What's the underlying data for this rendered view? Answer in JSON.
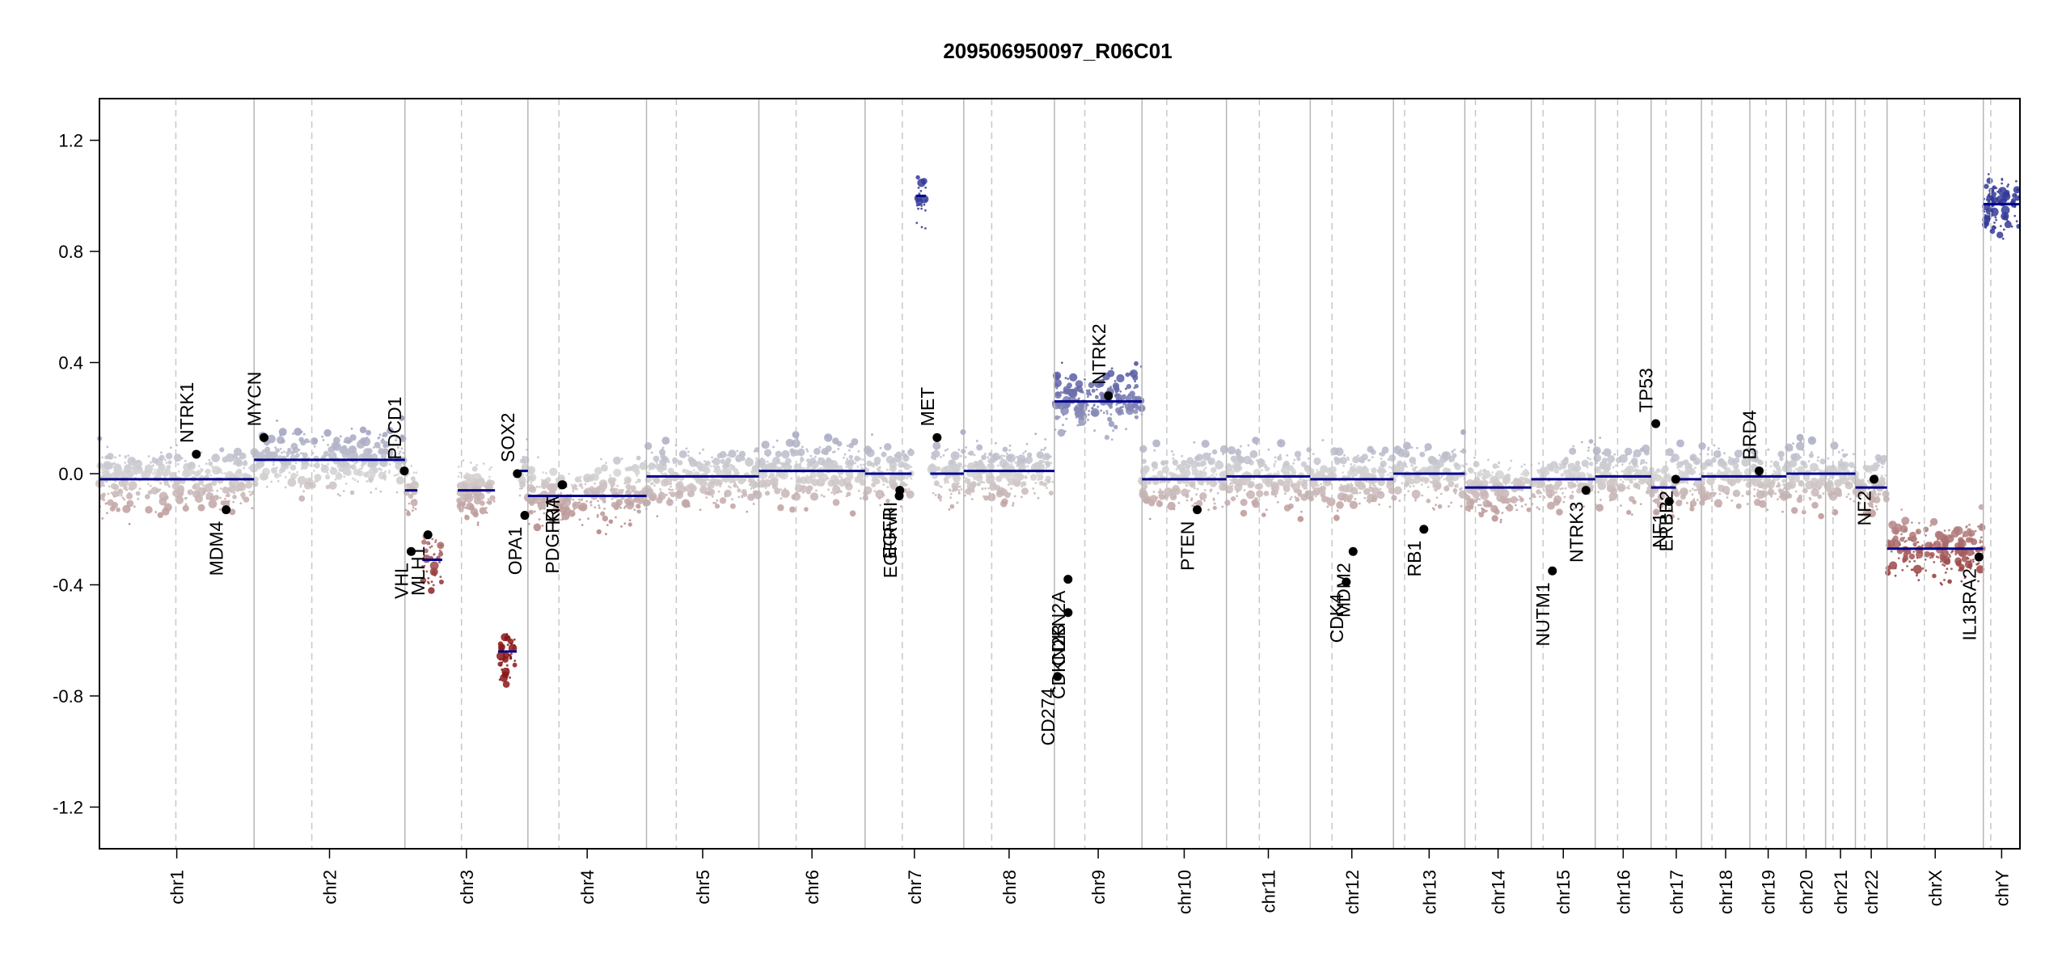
{
  "chart_data": {
    "type": "scatter",
    "title": "209506950097_R06C01",
    "xlabel": "",
    "ylabel": "",
    "ylim": [
      -1.35,
      1.35
    ],
    "y_ticks": [
      -1.2,
      -0.8,
      -0.4,
      0.0,
      0.4,
      0.8,
      1.2
    ],
    "y_tick_labels": [
      "-1.2",
      "-0.8",
      "-0.4",
      "0.0",
      "0.4",
      "0.8",
      "1.2"
    ],
    "grid": false,
    "colors": {
      "gain": "#3b3f9e",
      "loss": "#8b1a1a",
      "neutral": "#d0d0d0",
      "segment": "#00008b",
      "border": "#000000"
    },
    "chromosomes": [
      {
        "name": "chr1",
        "length": 249,
        "centromere": 123
      },
      {
        "name": "chr2",
        "length": 243,
        "centromere": 93
      },
      {
        "name": "chr3",
        "length": 198,
        "centromere": 91
      },
      {
        "name": "chr4",
        "length": 191,
        "centromere": 50
      },
      {
        "name": "chr5",
        "length": 181,
        "centromere": 48
      },
      {
        "name": "chr6",
        "length": 171,
        "centromere": 60
      },
      {
        "name": "chr7",
        "length": 159,
        "centromere": 60
      },
      {
        "name": "chr8",
        "length": 146,
        "centromere": 45
      },
      {
        "name": "chr9",
        "length": 141,
        "centromere": 49
      },
      {
        "name": "chr10",
        "length": 136,
        "centromere": 40
      },
      {
        "name": "chr11",
        "length": 135,
        "centromere": 53
      },
      {
        "name": "chr12",
        "length": 134,
        "centromere": 35
      },
      {
        "name": "chr13",
        "length": 115,
        "centromere": 18
      },
      {
        "name": "chr14",
        "length": 107,
        "centromere": 17
      },
      {
        "name": "chr15",
        "length": 103,
        "centromere": 19
      },
      {
        "name": "chr16",
        "length": 90,
        "centromere": 36
      },
      {
        "name": "chr17",
        "length": 81,
        "centromere": 24
      },
      {
        "name": "chr18",
        "length": 78,
        "centromere": 17
      },
      {
        "name": "chr19",
        "length": 59,
        "centromere": 26
      },
      {
        "name": "chr20",
        "length": 63,
        "centromere": 28
      },
      {
        "name": "chr21",
        "length": 48,
        "centromere": 12
      },
      {
        "name": "chr22",
        "length": 51,
        "centromere": 15
      },
      {
        "name": "chrX",
        "length": 155,
        "centromere": 60
      },
      {
        "name": "chrY",
        "length": 59,
        "centromere": 12
      }
    ],
    "segments": [
      {
        "chr": "chr1",
        "start": 0,
        "end": 249,
        "value": -0.02
      },
      {
        "chr": "chr2",
        "start": 0,
        "end": 243,
        "value": 0.05
      },
      {
        "chr": "chr3",
        "start": 0,
        "end": 20,
        "value": -0.06
      },
      {
        "chr": "chr3",
        "start": 28,
        "end": 60,
        "value": -0.31
      },
      {
        "chr": "chr3",
        "start": 85,
        "end": 145,
        "value": -0.06
      },
      {
        "chr": "chr3",
        "start": 150,
        "end": 180,
        "value": -0.64
      },
      {
        "chr": "chr3",
        "start": 185,
        "end": 198,
        "value": 0.01
      },
      {
        "chr": "chr4",
        "start": 0,
        "end": 191,
        "value": -0.08
      },
      {
        "chr": "chr5",
        "start": 0,
        "end": 181,
        "value": -0.01
      },
      {
        "chr": "chr6",
        "start": 0,
        "end": 171,
        "value": 0.01
      },
      {
        "chr": "chr7",
        "start": 0,
        "end": 75,
        "value": 0.0
      },
      {
        "chr": "chr7",
        "start": 82,
        "end": 98,
        "value": 1.0
      },
      {
        "chr": "chr7",
        "start": 105,
        "end": 159,
        "value": 0.0
      },
      {
        "chr": "chr8",
        "start": 0,
        "end": 146,
        "value": 0.01
      },
      {
        "chr": "chr9",
        "start": 0,
        "end": 141,
        "value": 0.26
      },
      {
        "chr": "chr10",
        "start": 0,
        "end": 136,
        "value": -0.02
      },
      {
        "chr": "chr11",
        "start": 0,
        "end": 135,
        "value": -0.01
      },
      {
        "chr": "chr12",
        "start": 0,
        "end": 134,
        "value": -0.02
      },
      {
        "chr": "chr13",
        "start": 0,
        "end": 115,
        "value": 0.0
      },
      {
        "chr": "chr14",
        "start": 0,
        "end": 107,
        "value": -0.05
      },
      {
        "chr": "chr15",
        "start": 0,
        "end": 103,
        "value": -0.02
      },
      {
        "chr": "chr16",
        "start": 0,
        "end": 90,
        "value": -0.01
      },
      {
        "chr": "chr17",
        "start": 0,
        "end": 40,
        "value": -0.05
      },
      {
        "chr": "chr17",
        "start": 40,
        "end": 81,
        "value": -0.02
      },
      {
        "chr": "chr18",
        "start": 0,
        "end": 78,
        "value": -0.01
      },
      {
        "chr": "chr19",
        "start": 0,
        "end": 59,
        "value": -0.01
      },
      {
        "chr": "chr20",
        "start": 0,
        "end": 63,
        "value": 0.0
      },
      {
        "chr": "chr21",
        "start": 0,
        "end": 48,
        "value": 0.0
      },
      {
        "chr": "chr22",
        "start": 0,
        "end": 51,
        "value": -0.05
      },
      {
        "chr": "chrX",
        "start": 0,
        "end": 155,
        "value": -0.27
      },
      {
        "chr": "chrY",
        "start": 0,
        "end": 59,
        "value": 0.97
      }
    ],
    "genes": [
      {
        "name": "NTRK1",
        "chr": "chr1",
        "pos": 156,
        "value": 0.07
      },
      {
        "name": "MDM4",
        "chr": "chr1",
        "pos": 204,
        "value": -0.13
      },
      {
        "name": "MYCN",
        "chr": "chr2",
        "pos": 16,
        "value": 0.13
      },
      {
        "name": "PDCD1",
        "chr": "chr2",
        "pos": 242,
        "value": 0.01
      },
      {
        "name": "VHL",
        "chr": "chr3",
        "pos": 10,
        "value": -0.28
      },
      {
        "name": "MLH1",
        "chr": "chr3",
        "pos": 37,
        "value": -0.22
      },
      {
        "name": "SOX2",
        "chr": "chr3",
        "pos": 181,
        "value": 0.0
      },
      {
        "name": "OPA1",
        "chr": "chr3",
        "pos": 193,
        "value": -0.15
      },
      {
        "name": "PDGFRA",
        "chr": "chr4",
        "pos": 55,
        "value": -0.04
      },
      {
        "name": "KIT",
        "chr": "chr4",
        "pos": 56,
        "value": -0.04
      },
      {
        "name": "EGFR",
        "chr": "chr7",
        "pos": 55,
        "value": -0.08
      },
      {
        "name": "EGFRvIII",
        "chr": "chr7",
        "pos": 56,
        "value": -0.06
      },
      {
        "name": "MET",
        "chr": "chr7",
        "pos": 116,
        "value": 0.13
      },
      {
        "name": "CD274",
        "chr": "chr9",
        "pos": 5,
        "value": -0.73
      },
      {
        "name": "CDKN2B",
        "chr": "chr9",
        "pos": 22,
        "value": -0.5
      },
      {
        "name": "CDKN2A",
        "chr": "chr9",
        "pos": 21.9,
        "value": -0.38
      },
      {
        "name": "NTRK2",
        "chr": "chr9",
        "pos": 87,
        "value": 0.28
      },
      {
        "name": "PTEN",
        "chr": "chr10",
        "pos": 89,
        "value": -0.13
      },
      {
        "name": "CDK4",
        "chr": "chr12",
        "pos": 58,
        "value": -0.39
      },
      {
        "name": "MDM2",
        "chr": "chr12",
        "pos": 69,
        "value": -0.28
      },
      {
        "name": "RB1",
        "chr": "chr13",
        "pos": 49,
        "value": -0.2
      },
      {
        "name": "NUTM1",
        "chr": "chr15",
        "pos": 34,
        "value": -0.35
      },
      {
        "name": "NTRK3",
        "chr": "chr15",
        "pos": 88,
        "value": -0.06
      },
      {
        "name": "TP53",
        "chr": "chr17",
        "pos": 7.5,
        "value": 0.18
      },
      {
        "name": "NF1",
        "chr": "chr17",
        "pos": 29,
        "value": -0.1
      },
      {
        "name": "ERBB2",
        "chr": "chr17",
        "pos": 39.7,
        "value": -0.02
      },
      {
        "name": "BRD4",
        "chr": "chr19",
        "pos": 15,
        "value": 0.01
      },
      {
        "name": "NF2",
        "chr": "chr22",
        "pos": 30,
        "value": -0.02
      },
      {
        "name": "IL13RA2",
        "chr": "chrX",
        "pos": 148,
        "value": -0.3
      }
    ]
  }
}
